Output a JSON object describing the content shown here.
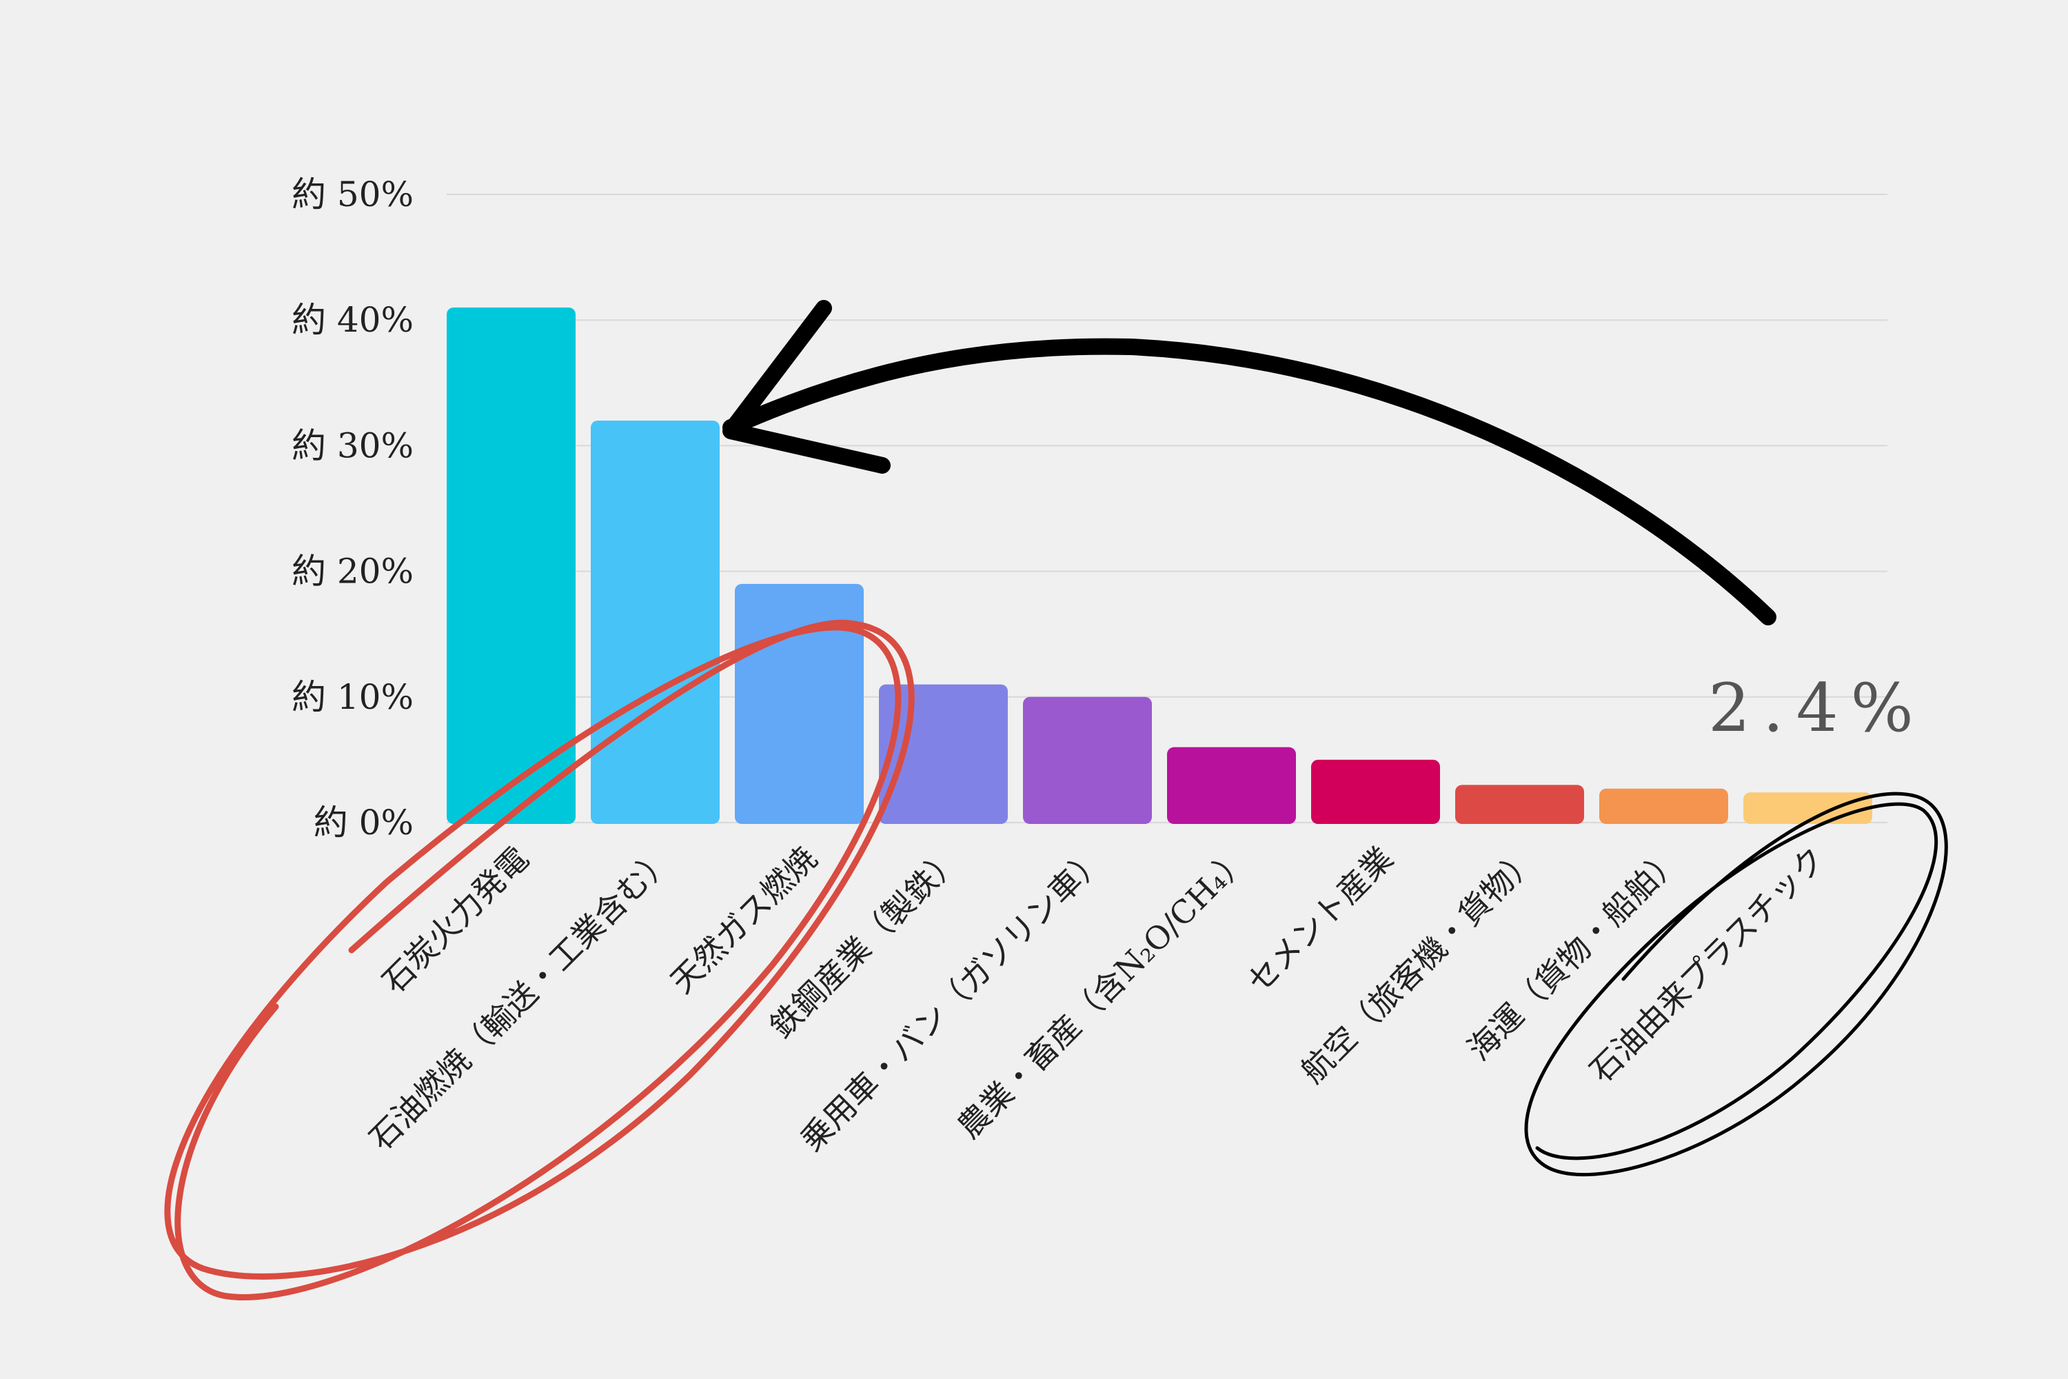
{
  "chart_data": {
    "type": "bar",
    "title": "",
    "xlabel": "",
    "ylabel": "",
    "ylim": [
      0,
      50
    ],
    "grid": true,
    "yticks": [
      {
        "value": 0,
        "label": "約 0%"
      },
      {
        "value": 10,
        "label": "約 10%"
      },
      {
        "value": 20,
        "label": "約 20%"
      },
      {
        "value": 30,
        "label": "約 30%"
      },
      {
        "value": 40,
        "label": "約 40%"
      },
      {
        "value": 50,
        "label": "約 50%"
      }
    ],
    "categories": [
      "石炭火力発電",
      "石油燃焼（輸送・工業含む）",
      "天然ガス燃焼",
      "鉄鋼産業（製鉄）",
      "乗用車・バン（ガソリン車）",
      "農業・畜産（含N₂O/CH₄）",
      "セメント産業",
      "航空（旅客機・貨物）",
      "海運（貨物・船舶）",
      "石油由来プラスチック"
    ],
    "values": [
      41,
      32,
      19,
      11,
      10,
      6,
      5,
      3,
      2.7,
      2.4
    ],
    "colors": [
      "#00c8db",
      "#48c3f8",
      "#62a8f6",
      "#8083e5",
      "#9a59cf",
      "#b8129c",
      "#d2005a",
      "#dd4a45",
      "#f4944f",
      "#fcca75"
    ],
    "annotations": [
      {
        "text": "2.4%",
        "target": "石油由来プラスチック"
      }
    ]
  },
  "annotation_colors": {
    "red_circle": "#d94c41",
    "black": "#000000"
  }
}
